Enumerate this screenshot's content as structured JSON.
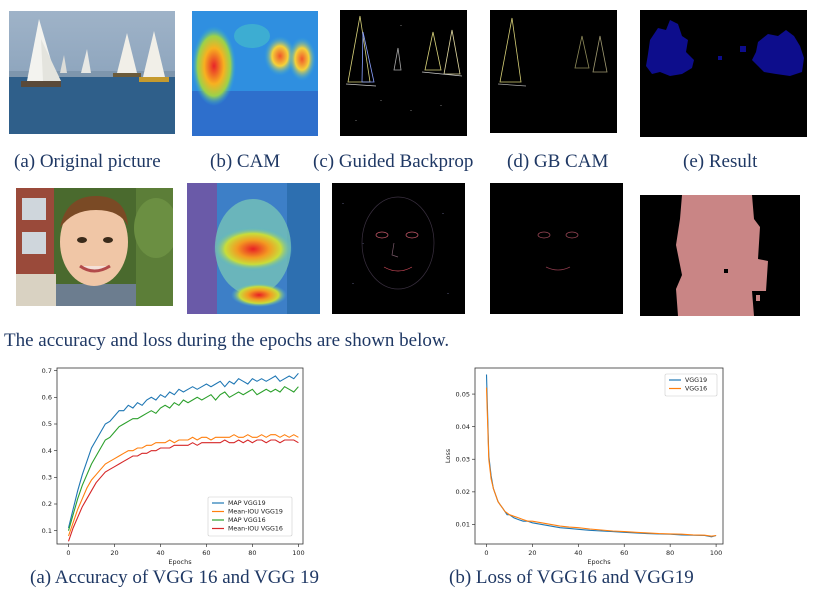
{
  "row1_captions": [
    "(a) Original picture",
    "(b) CAM",
    "(c) Guided Backprop",
    "(d) GB CAM",
    "(e) Result"
  ],
  "sentence": "The accuracy and loss during the epochs are shown below.",
  "chart_captions": [
    "(a) Accuracy of VGG 16 and  VGG 19",
    "(b) Loss of VGG16 and VGG19"
  ],
  "colors": {
    "caption": "#1f3864",
    "vgg19_blue": "#1f77b4",
    "vgg16_orange": "#ff7f0e",
    "green": "#2ca02c",
    "red": "#d62728",
    "mask_blue": "#0d0d8c",
    "mask_pink": "#c98585"
  },
  "chart_data": [
    {
      "type": "line",
      "xlabel": "Epochs",
      "ylabel": "",
      "xlim": [
        -5,
        102
      ],
      "ylim": [
        0.05,
        0.71
      ],
      "xticks": [
        0,
        20,
        40,
        60,
        80,
        100
      ],
      "yticks": [
        0.1,
        0.2,
        0.3,
        0.4,
        0.5,
        0.6,
        0.7
      ],
      "x": [
        0,
        2,
        4,
        6,
        8,
        10,
        12,
        14,
        16,
        18,
        20,
        22,
        24,
        26,
        28,
        30,
        32,
        34,
        36,
        38,
        40,
        42,
        44,
        46,
        48,
        50,
        52,
        54,
        56,
        58,
        60,
        62,
        64,
        66,
        68,
        70,
        72,
        74,
        76,
        78,
        80,
        82,
        84,
        86,
        88,
        90,
        92,
        94,
        96,
        98,
        100
      ],
      "legend_position": "lower-right",
      "series": [
        {
          "name": "MAP VGG19",
          "color": "#1f77b4",
          "values": [
            0.11,
            0.18,
            0.25,
            0.31,
            0.36,
            0.41,
            0.44,
            0.47,
            0.5,
            0.51,
            0.53,
            0.55,
            0.55,
            0.57,
            0.56,
            0.58,
            0.57,
            0.59,
            0.6,
            0.59,
            0.61,
            0.6,
            0.62,
            0.61,
            0.63,
            0.62,
            0.63,
            0.64,
            0.63,
            0.64,
            0.65,
            0.64,
            0.65,
            0.66,
            0.64,
            0.66,
            0.65,
            0.67,
            0.66,
            0.65,
            0.67,
            0.66,
            0.67,
            0.66,
            0.67,
            0.68,
            0.66,
            0.67,
            0.68,
            0.67,
            0.69
          ]
        },
        {
          "name": "Mean-IOU VGG19",
          "color": "#ff7f0e",
          "values": [
            0.08,
            0.13,
            0.18,
            0.22,
            0.26,
            0.29,
            0.31,
            0.33,
            0.35,
            0.36,
            0.37,
            0.38,
            0.39,
            0.4,
            0.4,
            0.41,
            0.41,
            0.42,
            0.42,
            0.43,
            0.43,
            0.43,
            0.44,
            0.43,
            0.44,
            0.44,
            0.44,
            0.45,
            0.44,
            0.45,
            0.45,
            0.44,
            0.45,
            0.45,
            0.45,
            0.45,
            0.46,
            0.45,
            0.45,
            0.46,
            0.45,
            0.45,
            0.46,
            0.45,
            0.46,
            0.46,
            0.45,
            0.46,
            0.45,
            0.46,
            0.45
          ]
        },
        {
          "name": "MAP VGG16",
          "color": "#2ca02c",
          "values": [
            0.1,
            0.16,
            0.22,
            0.27,
            0.31,
            0.35,
            0.38,
            0.41,
            0.44,
            0.45,
            0.47,
            0.49,
            0.5,
            0.51,
            0.52,
            0.52,
            0.53,
            0.54,
            0.55,
            0.54,
            0.56,
            0.57,
            0.56,
            0.58,
            0.57,
            0.59,
            0.58,
            0.59,
            0.6,
            0.59,
            0.6,
            0.61,
            0.59,
            0.61,
            0.62,
            0.6,
            0.61,
            0.62,
            0.61,
            0.62,
            0.63,
            0.61,
            0.62,
            0.63,
            0.62,
            0.63,
            0.62,
            0.64,
            0.63,
            0.62,
            0.64
          ]
        },
        {
          "name": "Mean-IOU VGG16",
          "color": "#d62728",
          "values": [
            0.06,
            0.11,
            0.15,
            0.19,
            0.22,
            0.25,
            0.28,
            0.3,
            0.32,
            0.33,
            0.34,
            0.35,
            0.36,
            0.37,
            0.38,
            0.38,
            0.39,
            0.39,
            0.4,
            0.4,
            0.41,
            0.41,
            0.41,
            0.42,
            0.42,
            0.42,
            0.42,
            0.43,
            0.42,
            0.43,
            0.43,
            0.43,
            0.43,
            0.43,
            0.44,
            0.43,
            0.43,
            0.44,
            0.43,
            0.44,
            0.43,
            0.44,
            0.44,
            0.43,
            0.44,
            0.44,
            0.43,
            0.44,
            0.44,
            0.44,
            0.43
          ]
        }
      ]
    },
    {
      "type": "line",
      "xlabel": "Epochs",
      "ylabel": "Loss",
      "xlim": [
        -5,
        103
      ],
      "ylim": [
        0.004,
        0.058
      ],
      "xticks": [
        0,
        20,
        40,
        60,
        80,
        100
      ],
      "yticks": [
        0.01,
        0.02,
        0.03,
        0.04,
        0.05
      ],
      "x": [
        0,
        1,
        2,
        3,
        4,
        5,
        6,
        7,
        8,
        9,
        10,
        12,
        14,
        16,
        18,
        20,
        24,
        28,
        32,
        36,
        40,
        45,
        50,
        55,
        60,
        65,
        70,
        75,
        80,
        85,
        90,
        95,
        98,
        100
      ],
      "legend_position": "top-right",
      "series": [
        {
          "name": "VGG19",
          "color": "#1f77b4",
          "values": [
            0.056,
            0.031,
            0.025,
            0.021,
            0.019,
            0.017,
            0.016,
            0.015,
            0.014,
            0.013,
            0.013,
            0.012,
            0.0115,
            0.011,
            0.011,
            0.0105,
            0.01,
            0.0095,
            0.009,
            0.0088,
            0.0085,
            0.0082,
            0.008,
            0.0078,
            0.0076,
            0.0074,
            0.0072,
            0.0071,
            0.007,
            0.0068,
            0.0067,
            0.0066,
            0.0062,
            0.0066
          ]
        },
        {
          "name": "VGG16",
          "color": "#ff7f0e",
          "values": [
            0.052,
            0.03,
            0.024,
            0.021,
            0.019,
            0.017,
            0.016,
            0.015,
            0.014,
            0.0135,
            0.013,
            0.0125,
            0.012,
            0.0115,
            0.011,
            0.011,
            0.0105,
            0.01,
            0.0095,
            0.0092,
            0.009,
            0.0086,
            0.0083,
            0.008,
            0.0078,
            0.0076,
            0.0074,
            0.0072,
            0.0071,
            0.007,
            0.0068,
            0.0067,
            0.0064,
            0.0066
          ]
        }
      ]
    }
  ]
}
